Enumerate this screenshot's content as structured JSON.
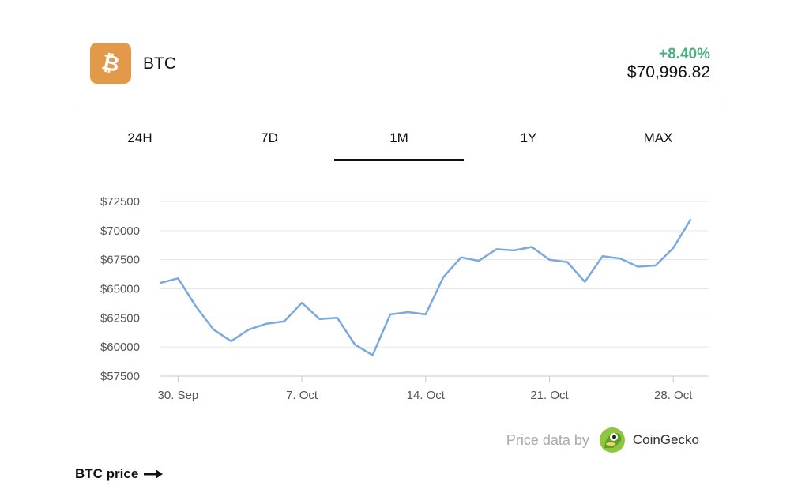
{
  "coin": {
    "symbol": "BTC",
    "logo_icon": "bitcoin-icon",
    "logo_color": "#e3994a"
  },
  "price": {
    "change": "+8.40%",
    "change_color": "#4caf7d",
    "value": "$70,996.82"
  },
  "tabs": [
    {
      "label": "24H",
      "active": false
    },
    {
      "label": "7D",
      "active": false
    },
    {
      "label": "1M",
      "active": true
    },
    {
      "label": "1Y",
      "active": false
    },
    {
      "label": "MAX",
      "active": false
    }
  ],
  "chart_data": {
    "type": "line",
    "title": "",
    "xlabel": "",
    "ylabel": "",
    "ylim": [
      57500,
      72500
    ],
    "y_ticks": [
      "$72500",
      "$70000",
      "$67500",
      "$65000",
      "$62500",
      "$60000",
      "$57500"
    ],
    "y_tick_values": [
      72500,
      70000,
      67500,
      65000,
      62500,
      60000,
      57500
    ],
    "xlim": [
      "2024-09-29",
      "2024-10-30"
    ],
    "x_ticks": [
      {
        "label": "30. Sep",
        "date": "2024-09-30"
      },
      {
        "label": "7. Oct",
        "date": "2024-10-07"
      },
      {
        "label": "14. Oct",
        "date": "2024-10-14"
      },
      {
        "label": "21. Oct",
        "date": "2024-10-21"
      },
      {
        "label": "28. Oct",
        "date": "2024-10-28"
      }
    ],
    "grid": true,
    "line_color": "#7aa9e0",
    "series": [
      {
        "x": [
          "2024-09-29",
          "2024-09-30",
          "2024-10-01",
          "2024-10-02",
          "2024-10-03",
          "2024-10-04",
          "2024-10-05",
          "2024-10-06",
          "2024-10-07",
          "2024-10-08",
          "2024-10-09",
          "2024-10-10",
          "2024-10-11",
          "2024-10-12",
          "2024-10-13",
          "2024-10-14",
          "2024-10-15",
          "2024-10-16",
          "2024-10-17",
          "2024-10-18",
          "2024-10-19",
          "2024-10-20",
          "2024-10-21",
          "2024-10-22",
          "2024-10-23",
          "2024-10-24",
          "2024-10-25",
          "2024-10-26",
          "2024-10-27",
          "2024-10-28",
          "2024-10-29"
        ],
        "values": [
          65500,
          65900,
          63500,
          61500,
          60500,
          61500,
          62000,
          62200,
          63800,
          62400,
          62500,
          60200,
          59300,
          62800,
          63000,
          62800,
          66000,
          67700,
          67400,
          68400,
          68300,
          68600,
          67500,
          67300,
          65600,
          67800,
          67600,
          66900,
          67000,
          68500,
          71000
        ]
      }
    ]
  },
  "attribution": {
    "prefix": "Price data by",
    "brand": "CoinGecko",
    "logo_icon": "coingecko-icon"
  },
  "footer": {
    "link_label": "BTC price",
    "arrow_icon": "arrow-right-icon"
  }
}
